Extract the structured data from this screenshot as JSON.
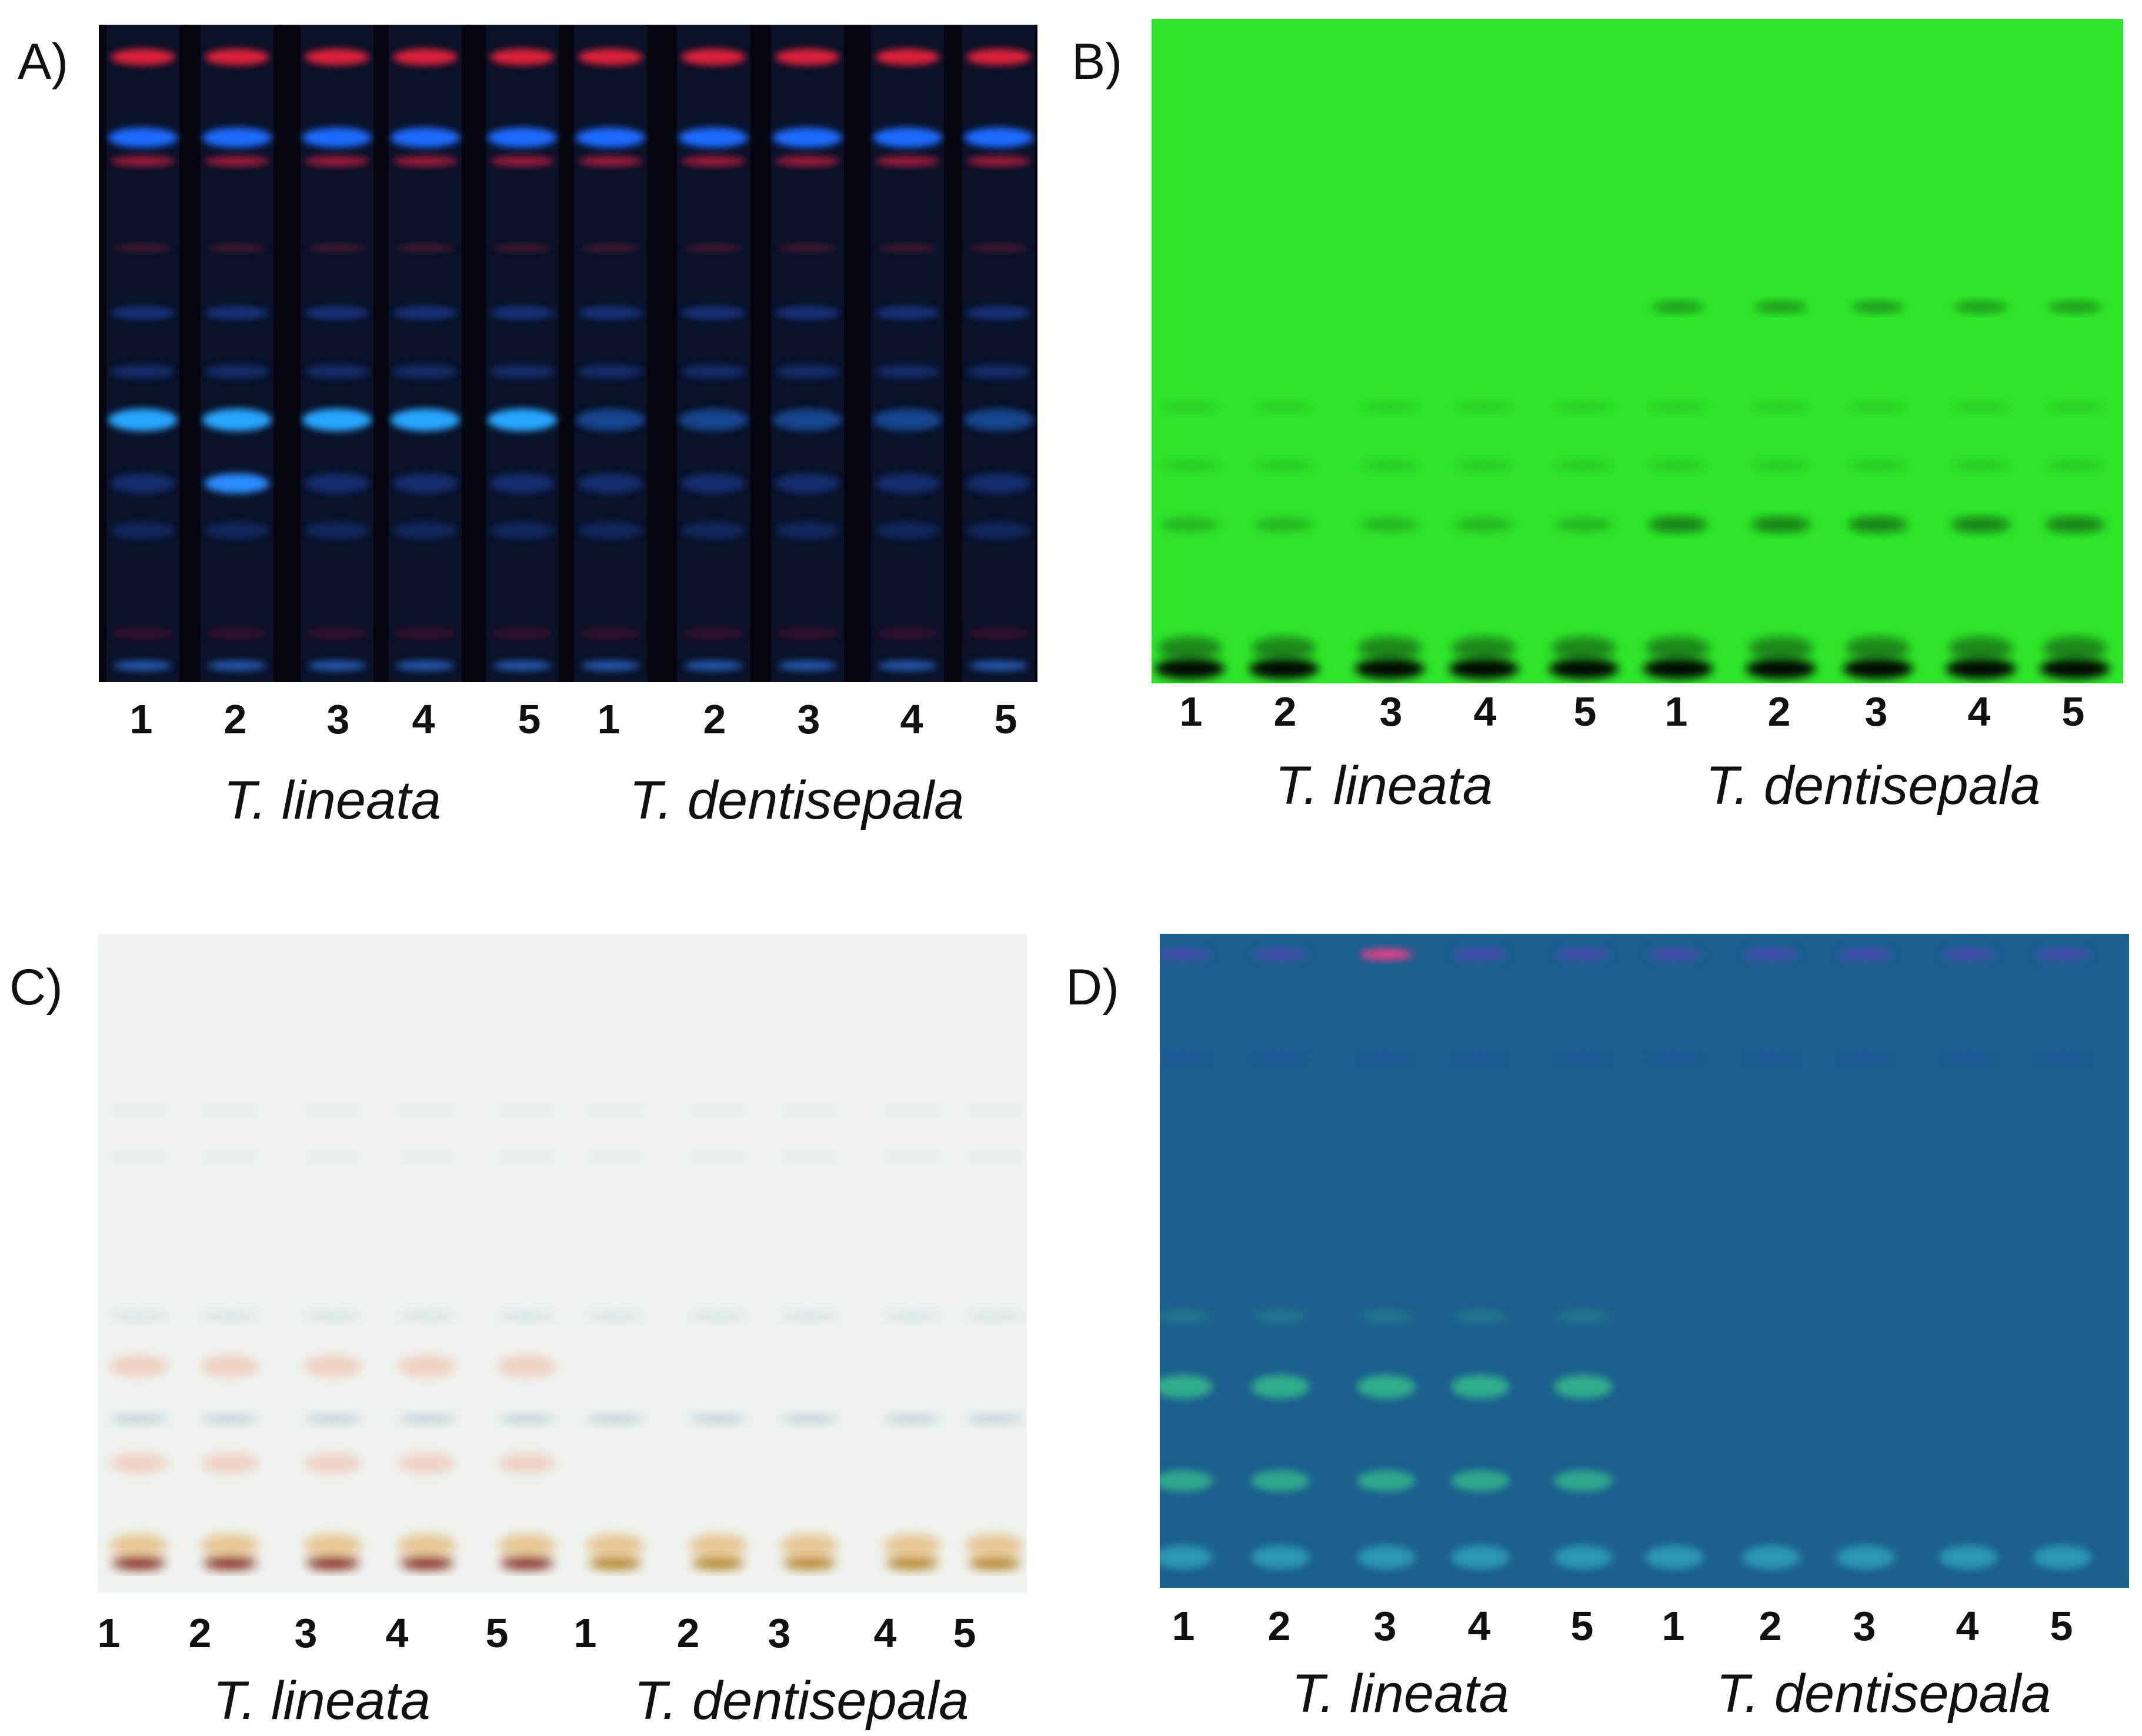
{
  "panels": [
    {
      "letter": "A)",
      "lanes": [
        "1",
        "2",
        "3",
        "4",
        "5",
        "1",
        "2",
        "3",
        "4",
        "5"
      ],
      "species": [
        "T. lineata",
        "T. dentisepala"
      ],
      "background": "#05060e"
    },
    {
      "letter": "B)",
      "lanes": [
        "1",
        "2",
        "3",
        "4",
        "5",
        "1",
        "2",
        "3",
        "4",
        "5"
      ],
      "species": [
        "T. lineata",
        "T. dentisepala"
      ],
      "background": "#2fe62a"
    },
    {
      "letter": "C)",
      "lanes": [
        "1",
        "2",
        "3",
        "4",
        "5",
        "1",
        "2",
        "3",
        "4",
        "5"
      ],
      "species": [
        "T. lineata",
        "T. dentisepala"
      ],
      "background": "#eef3ef"
    },
    {
      "letter": "D)",
      "lanes": [
        "1",
        "2",
        "3",
        "4",
        "5",
        "1",
        "2",
        "3",
        "4",
        "5"
      ],
      "species": [
        "T. lineata",
        "T. dentisepala"
      ],
      "background": "#1b5f8e"
    }
  ]
}
